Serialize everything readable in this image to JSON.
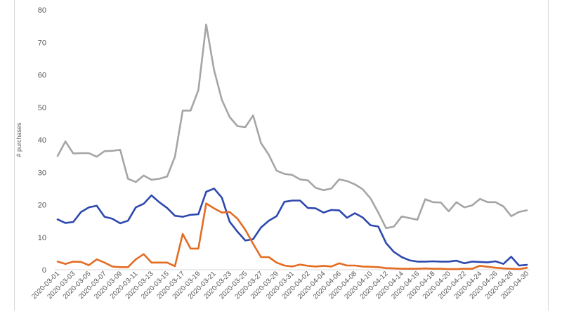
{
  "chart_data": {
    "type": "line",
    "title": "",
    "xlabel": "",
    "ylabel": "# purchases",
    "ylim": [
      0,
      80
    ],
    "yticks": [
      0,
      10,
      20,
      30,
      40,
      50,
      60,
      70,
      80
    ],
    "grid": false,
    "legend": "none",
    "x": [
      "2020-03-01",
      "2020-03-02",
      "2020-03-03",
      "2020-03-04",
      "2020-03-05",
      "2020-03-06",
      "2020-03-07",
      "2020-03-08",
      "2020-03-09",
      "2020-03-10",
      "2020-03-11",
      "2020-03-12",
      "2020-03-13",
      "2020-03-14",
      "2020-03-15",
      "2020-03-16",
      "2020-03-17",
      "2020-03-18",
      "2020-03-19",
      "2020-03-20",
      "2020-03-21",
      "2020-03-22",
      "2020-03-23",
      "2020-03-24",
      "2020-03-25",
      "2020-03-26",
      "2020-03-27",
      "2020-03-28",
      "2020-03-29",
      "2020-03-30",
      "2020-03-31",
      "2020-04-01",
      "2020-04-02",
      "2020-04-03",
      "2020-04-04",
      "2020-04-05",
      "2020-04-06",
      "2020-04-07",
      "2020-04-08",
      "2020-04-09",
      "2020-04-10",
      "2020-04-11",
      "2020-04-12",
      "2020-04-13",
      "2020-04-14",
      "2020-04-15",
      "2020-04-16",
      "2020-04-17",
      "2020-04-18",
      "2020-04-19",
      "2020-04-20",
      "2020-04-21",
      "2020-04-22",
      "2020-04-23",
      "2020-04-24",
      "2020-04-25",
      "2020-04-26",
      "2020-04-27",
      "2020-04-28",
      "2020-04-29",
      "2020-04-30"
    ],
    "xtick_labels": [
      "2020-03-01",
      "2020-03-03",
      "2020-03-05",
      "2020-03-07",
      "2020-03-09",
      "2020-03-11",
      "2020-03-13",
      "2020-03-15",
      "2020-03-17",
      "2020-03-19",
      "2020-03-21",
      "2020-03-23",
      "2020-03-25",
      "2020-03-27",
      "2020-03-29",
      "2020-03-31",
      "2020-04-02",
      "2020-04-04",
      "2020-04-06",
      "2020-04-08",
      "2020-04-10",
      "2020-04-12",
      "2020-04-14",
      "2020-04-16",
      "2020-04-18",
      "2020-04-20",
      "2020-04-22",
      "2020-04-24",
      "2020-04-26",
      "2020-04-28",
      "2020-04-30"
    ],
    "series": [
      {
        "color": "#a5a5a5",
        "values": [
          35,
          39.5,
          35.8,
          35.9,
          35.9,
          34.8,
          36.5,
          36.6,
          36.9,
          28,
          27,
          29,
          27.7,
          28,
          28.7,
          34.8,
          49,
          49,
          55.3,
          75.5,
          61.5,
          52.3,
          47,
          44.2,
          43.9,
          47.5,
          39,
          35.4,
          30.5,
          29.5,
          29.2,
          27.8,
          27.5,
          25.2,
          24.5,
          25,
          27.8,
          27.3,
          26.3,
          24.8,
          22,
          17.6,
          12.8,
          13.3,
          16.4,
          15.9,
          15.4,
          21.7,
          20.8,
          20.7,
          18,
          20.8,
          19.2,
          19.8,
          21.8,
          20.8,
          20.8,
          19.5,
          16.5,
          17.8,
          18.3
        ]
      },
      {
        "color": "#2e49ae",
        "values": [
          15.5,
          14.4,
          14.7,
          17.8,
          19.2,
          19.7,
          16.3,
          15.7,
          14.3,
          15.1,
          19.2,
          20.3,
          22.9,
          20.8,
          19,
          16.6,
          16.3,
          16.9,
          17.1,
          24,
          25,
          22.2,
          14.8,
          11.7,
          9,
          9.4,
          13,
          15.1,
          16.5,
          20.9,
          21.3,
          21.3,
          19,
          18.9,
          17.6,
          18.4,
          18.3,
          16,
          17.4,
          16.1,
          13.7,
          13.3,
          8.2,
          5.5,
          3.9,
          2.9,
          2.5,
          2.5,
          2.6,
          2.5,
          2.5,
          2.8,
          2,
          2.5,
          2.4,
          2.3,
          2.6,
          1.8,
          4,
          1.3,
          1.5
        ]
      },
      {
        "color": "#e46c23",
        "values": [
          2.5,
          1.8,
          2.5,
          2.4,
          1.4,
          3.2,
          2.2,
          1,
          0.8,
          0.8,
          3.2,
          4.8,
          2.2,
          2.2,
          2.2,
          1.1,
          11,
          6.5,
          6.5,
          20.4,
          18.9,
          17.6,
          17.8,
          15.7,
          12.3,
          8,
          3.9,
          3.9,
          2.2,
          1.3,
          1,
          1.6,
          1.2,
          1,
          1.2,
          1,
          2,
          1.3,
          1.3,
          1,
          0.9,
          0.8,
          0.5,
          0.4,
          0.3,
          0.3,
          0.3,
          0.4,
          0.3,
          0.3,
          0.2,
          0.2,
          0.3,
          0.3,
          1.2,
          0.9,
          0.6,
          0.4,
          0.3,
          0.2,
          0.6
        ]
      }
    ]
  }
}
